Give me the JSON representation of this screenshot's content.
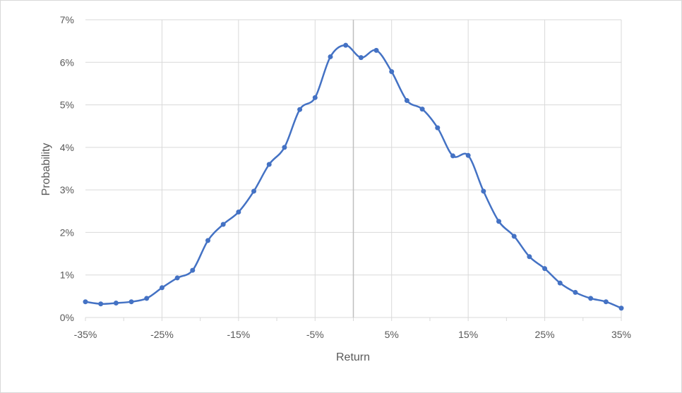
{
  "chart_data": {
    "type": "line",
    "xlabel": "Return",
    "ylabel": "Probability",
    "xlim": [
      -35,
      35
    ],
    "ylim": [
      0,
      7
    ],
    "x_ticks": [
      -35,
      -25,
      -15,
      -5,
      5,
      15,
      25,
      35
    ],
    "x_tick_labels": [
      "-35%",
      "-25%",
      "-15%",
      "-5%",
      "5%",
      "15%",
      "25%",
      "35%"
    ],
    "y_ticks": [
      0,
      1,
      2,
      3,
      4,
      5,
      6,
      7
    ],
    "y_tick_labels": [
      "0%",
      "1%",
      "2%",
      "3%",
      "4%",
      "5%",
      "6%",
      "7%"
    ],
    "grid": true,
    "legend": "none",
    "colors": {
      "line": "#4472c4",
      "grid": "#d9d9d9",
      "zero_line": "#bfbfbf"
    },
    "series": [
      {
        "x": [
          -35,
          -33,
          -31,
          -29,
          -27,
          -25,
          -23,
          -21,
          -19,
          -17,
          -15,
          -13,
          -11,
          -9,
          -7,
          -5,
          -3,
          -1,
          1,
          3,
          5,
          7,
          9,
          11,
          13,
          15,
          17,
          19,
          21,
          23,
          25,
          27,
          29,
          31,
          33,
          35
        ],
        "y": [
          0.37,
          0.32,
          0.34,
          0.37,
          0.45,
          0.7,
          0.93,
          1.11,
          1.81,
          2.19,
          2.48,
          2.97,
          3.6,
          4.0,
          4.89,
          5.17,
          6.13,
          6.4,
          6.11,
          6.28,
          5.78,
          5.1,
          4.9,
          4.46,
          3.8,
          3.81,
          2.97,
          2.26,
          1.91,
          1.43,
          1.15,
          0.81,
          0.59,
          0.45,
          0.37,
          0.22
        ]
      }
    ]
  }
}
